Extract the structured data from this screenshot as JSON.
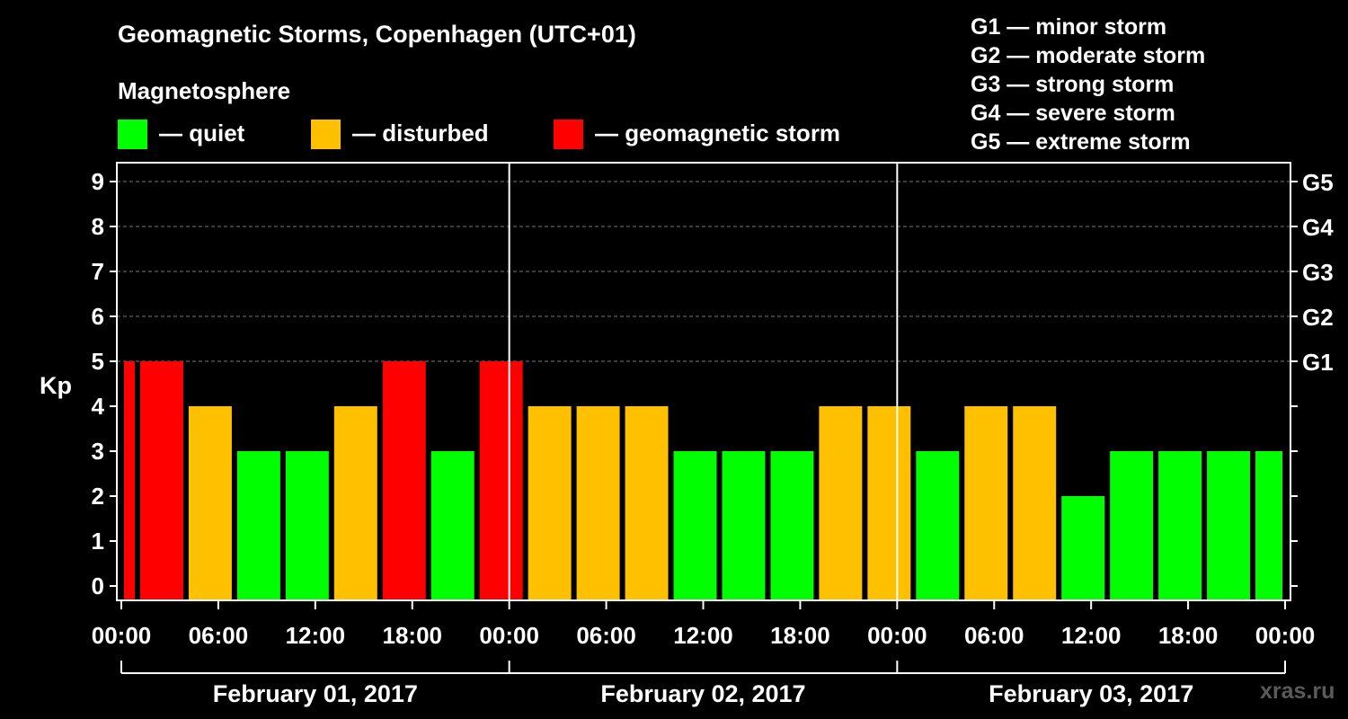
{
  "header": {
    "title": "Geomagnetic Storms, Copenhagen (UTC+01)",
    "subtitle": "Magnetosphere"
  },
  "legend": [
    {
      "label": "— quiet",
      "color": "#00ff00"
    },
    {
      "label": "— disturbed",
      "color": "#ffc000"
    },
    {
      "label": "— geomagnetic storm",
      "color": "#ff0000"
    }
  ],
  "storm_levels": [
    "G1 — minor storm",
    "G2 — moderate storm",
    "G3 — strong storm",
    "G4 — severe storm",
    "G5 — extreme storm"
  ],
  "watermark": "xras.ru",
  "chart_data": {
    "type": "bar",
    "ylabel": "Kp",
    "ylim": [
      0,
      9
    ],
    "y_ticks": [
      0,
      1,
      2,
      3,
      4,
      5,
      6,
      7,
      8,
      9
    ],
    "right_axis_labels": [
      {
        "kp": 5,
        "label": "G1"
      },
      {
        "kp": 6,
        "label": "G2"
      },
      {
        "kp": 7,
        "label": "G3"
      },
      {
        "kp": 8,
        "label": "G4"
      },
      {
        "kp": 9,
        "label": "G5"
      }
    ],
    "x_tick_labels": [
      "00:00",
      "06:00",
      "12:00",
      "18:00",
      "00:00",
      "06:00",
      "12:00",
      "18:00",
      "00:00",
      "06:00",
      "12:00",
      "18:00",
      "00:00"
    ],
    "x_tick_hours": [
      0,
      6,
      12,
      18,
      24,
      30,
      36,
      42,
      48,
      54,
      60,
      66,
      72
    ],
    "xlim_hours": [
      0,
      72
    ],
    "grid": "horizontal dashed at 5–9",
    "day_labels": [
      "February 01, 2017",
      "February 02, 2017",
      "February 03, 2017"
    ],
    "colors": {
      "quiet": "#00ff00",
      "disturbed": "#ffc000",
      "storm": "#ff0000"
    },
    "bars": [
      {
        "start": 0,
        "end": 1,
        "kp": 5
      },
      {
        "start": 1,
        "end": 4,
        "kp": 5
      },
      {
        "start": 4,
        "end": 7,
        "kp": 4
      },
      {
        "start": 7,
        "end": 10,
        "kp": 3
      },
      {
        "start": 10,
        "end": 13,
        "kp": 3
      },
      {
        "start": 13,
        "end": 16,
        "kp": 4
      },
      {
        "start": 16,
        "end": 19,
        "kp": 5
      },
      {
        "start": 19,
        "end": 22,
        "kp": 3
      },
      {
        "start": 22,
        "end": 25,
        "kp": 5
      },
      {
        "start": 25,
        "end": 28,
        "kp": 4
      },
      {
        "start": 28,
        "end": 31,
        "kp": 4
      },
      {
        "start": 31,
        "end": 34,
        "kp": 4
      },
      {
        "start": 34,
        "end": 37,
        "kp": 3
      },
      {
        "start": 37,
        "end": 40,
        "kp": 3
      },
      {
        "start": 40,
        "end": 43,
        "kp": 3
      },
      {
        "start": 43,
        "end": 46,
        "kp": 4
      },
      {
        "start": 46,
        "end": 49,
        "kp": 4
      },
      {
        "start": 49,
        "end": 52,
        "kp": 3
      },
      {
        "start": 52,
        "end": 55,
        "kp": 4
      },
      {
        "start": 55,
        "end": 58,
        "kp": 4
      },
      {
        "start": 58,
        "end": 61,
        "kp": 2
      },
      {
        "start": 61,
        "end": 64,
        "kp": 3
      },
      {
        "start": 64,
        "end": 67,
        "kp": 3
      },
      {
        "start": 67,
        "end": 70,
        "kp": 3
      },
      {
        "start": 70,
        "end": 72,
        "kp": 3
      }
    ]
  }
}
